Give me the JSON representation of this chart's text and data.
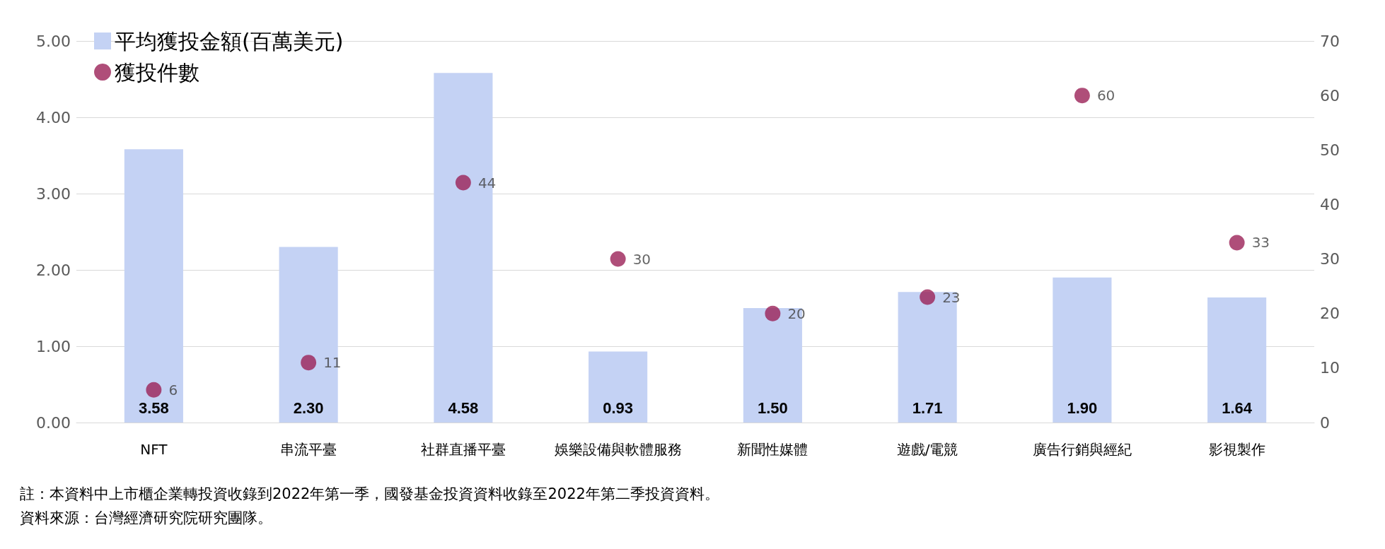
{
  "chart_data": {
    "type": "bar",
    "categories": [
      "NFT",
      "串流平臺",
      "社群直播平臺",
      "娛樂設備與軟體服務",
      "新聞性媒體",
      "遊戲/電競",
      "廣告行銷與經紀",
      "影視製作"
    ],
    "series": [
      {
        "name": "平均獲投金額(百萬美元)",
        "color": "#c4d2f4",
        "values": [
          3.58,
          2.3,
          4.58,
          0.93,
          1.5,
          1.71,
          1.9,
          1.64
        ],
        "value_labels": [
          "3.58",
          "2.30",
          "4.58",
          "0.93",
          "1.50",
          "1.71",
          "1.90",
          "1.64"
        ]
      },
      {
        "name": "獲投件數",
        "type": "scatter",
        "axis": "y2",
        "color": "#9b2257",
        "values": [
          6,
          11,
          44,
          30,
          20,
          23,
          60,
          33
        ],
        "value_labels": [
          "6",
          "11",
          "44",
          "30",
          "20",
          "23",
          "60",
          "33"
        ]
      }
    ],
    "ylim": [
      0,
      5
    ],
    "yticks": [
      {
        "value": 0,
        "label": "0.00"
      },
      {
        "value": 1,
        "label": "1.00"
      },
      {
        "value": 2,
        "label": "2.00"
      },
      {
        "value": 3,
        "label": "3.00"
      },
      {
        "value": 4,
        "label": "4.00"
      },
      {
        "value": 5,
        "label": "5.00"
      }
    ],
    "y2lim": [
      0,
      70
    ],
    "y2ticks": [
      0,
      10,
      20,
      30,
      40,
      50,
      60,
      70
    ],
    "grid": "y",
    "legend": "top left",
    "marker": "circle",
    "annotations": [
      "註：本資料中上市櫃企業轉投資收錄到2022年第一季，國發基金投資資料收錄至2022年第二季投資資料。",
      "資料來源：台灣經濟研究院研究團隊。"
    ]
  }
}
